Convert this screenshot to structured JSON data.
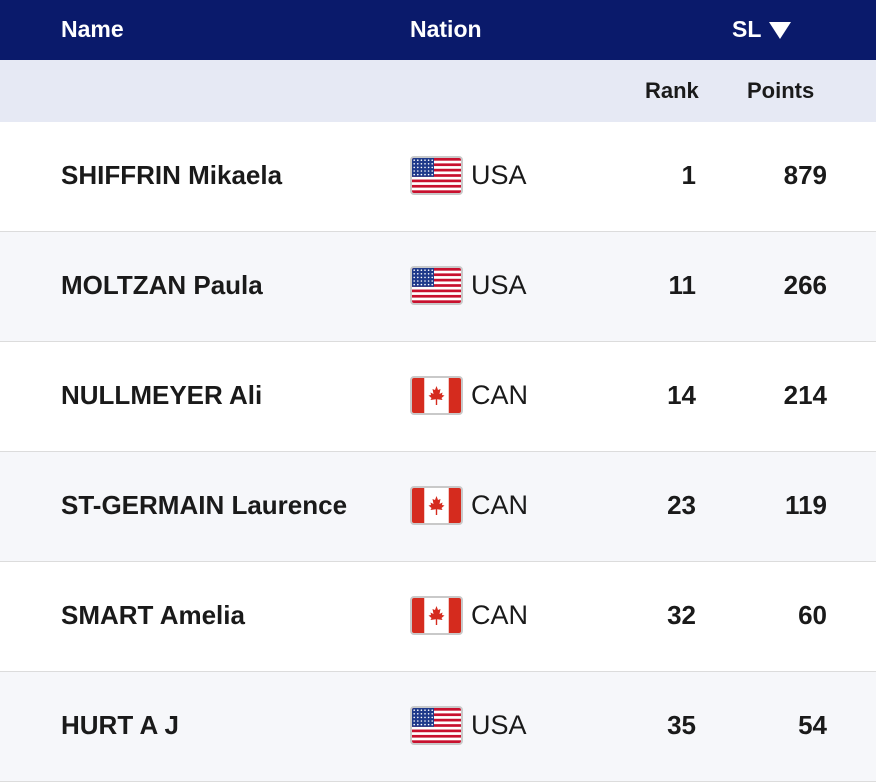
{
  "header": {
    "name_label": "Name",
    "nation_label": "Nation",
    "discipline_label": "SL",
    "sort_icon": "caret-down-icon"
  },
  "subheader": {
    "rank_label": "Rank",
    "points_label": "Points"
  },
  "colors": {
    "header_bg": "#0a1a6b",
    "subheader_bg": "#e6e9f4",
    "alt_row_bg": "#f6f7fa"
  },
  "rows": [
    {
      "name": "SHIFFRIN Mikaela",
      "nation": "USA",
      "flag_icon": "usa-flag-icon",
      "rank": "1",
      "points": "879"
    },
    {
      "name": "MOLTZAN Paula",
      "nation": "USA",
      "flag_icon": "usa-flag-icon",
      "rank": "11",
      "points": "266"
    },
    {
      "name": "NULLMEYER Ali",
      "nation": "CAN",
      "flag_icon": "canada-flag-icon",
      "rank": "14",
      "points": "214"
    },
    {
      "name": "ST-GERMAIN Laurence",
      "nation": "CAN",
      "flag_icon": "canada-flag-icon",
      "rank": "23",
      "points": "119"
    },
    {
      "name": "SMART Amelia",
      "nation": "CAN",
      "flag_icon": "canada-flag-icon",
      "rank": "32",
      "points": "60"
    },
    {
      "name": "HURT A J",
      "nation": "USA",
      "flag_icon": "usa-flag-icon",
      "rank": "35",
      "points": "54"
    }
  ]
}
